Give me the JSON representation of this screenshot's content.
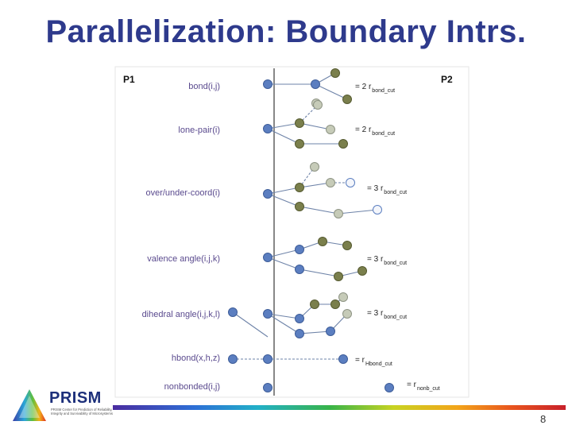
{
  "slide": {
    "title": "Parallelization: Boundary Intrs.",
    "page_number": "8"
  },
  "logo": {
    "name": "PRISM",
    "tagline": "PRISM Center for Prediction of Reliability, Integrity and Survivability of Microsystems"
  },
  "diagram": {
    "processor_left": "P1",
    "processor_right": "P2",
    "rows": [
      {
        "label": "bond(i,j)",
        "distance": "= 2 r",
        "subscript": "bond_cut"
      },
      {
        "label": "lone-pair(i)",
        "distance": "= 2 r",
        "subscript": "bond_cut"
      },
      {
        "label": "over/under-coord(i)",
        "distance": "= 3 r",
        "subscript": "bond_cut"
      },
      {
        "label": "valence angle(i,j,k)",
        "distance": "= 3 r",
        "subscript": "bond_cut"
      },
      {
        "label": "dihedral angle(i,j,k,l)",
        "distance": "= 3 r",
        "subscript": "bond_cut"
      },
      {
        "label": "hbond(x,h,z)",
        "distance": "= r",
        "subscript": "Hbond_cut"
      },
      {
        "label": "nonbonded(i,j)",
        "distance": "= r",
        "subscript": "nonb_cut"
      }
    ],
    "colors": {
      "atom_blue": "#5b7ec0",
      "atom_olive": "#7a7f4c",
      "atom_light": "#c6cbb8",
      "atom_ghost": "#f4f6fb",
      "bond_line": "#6e83a8",
      "boundary": "#555555",
      "label_text": "#5a4a8e",
      "title": "#2e3a8c"
    }
  }
}
